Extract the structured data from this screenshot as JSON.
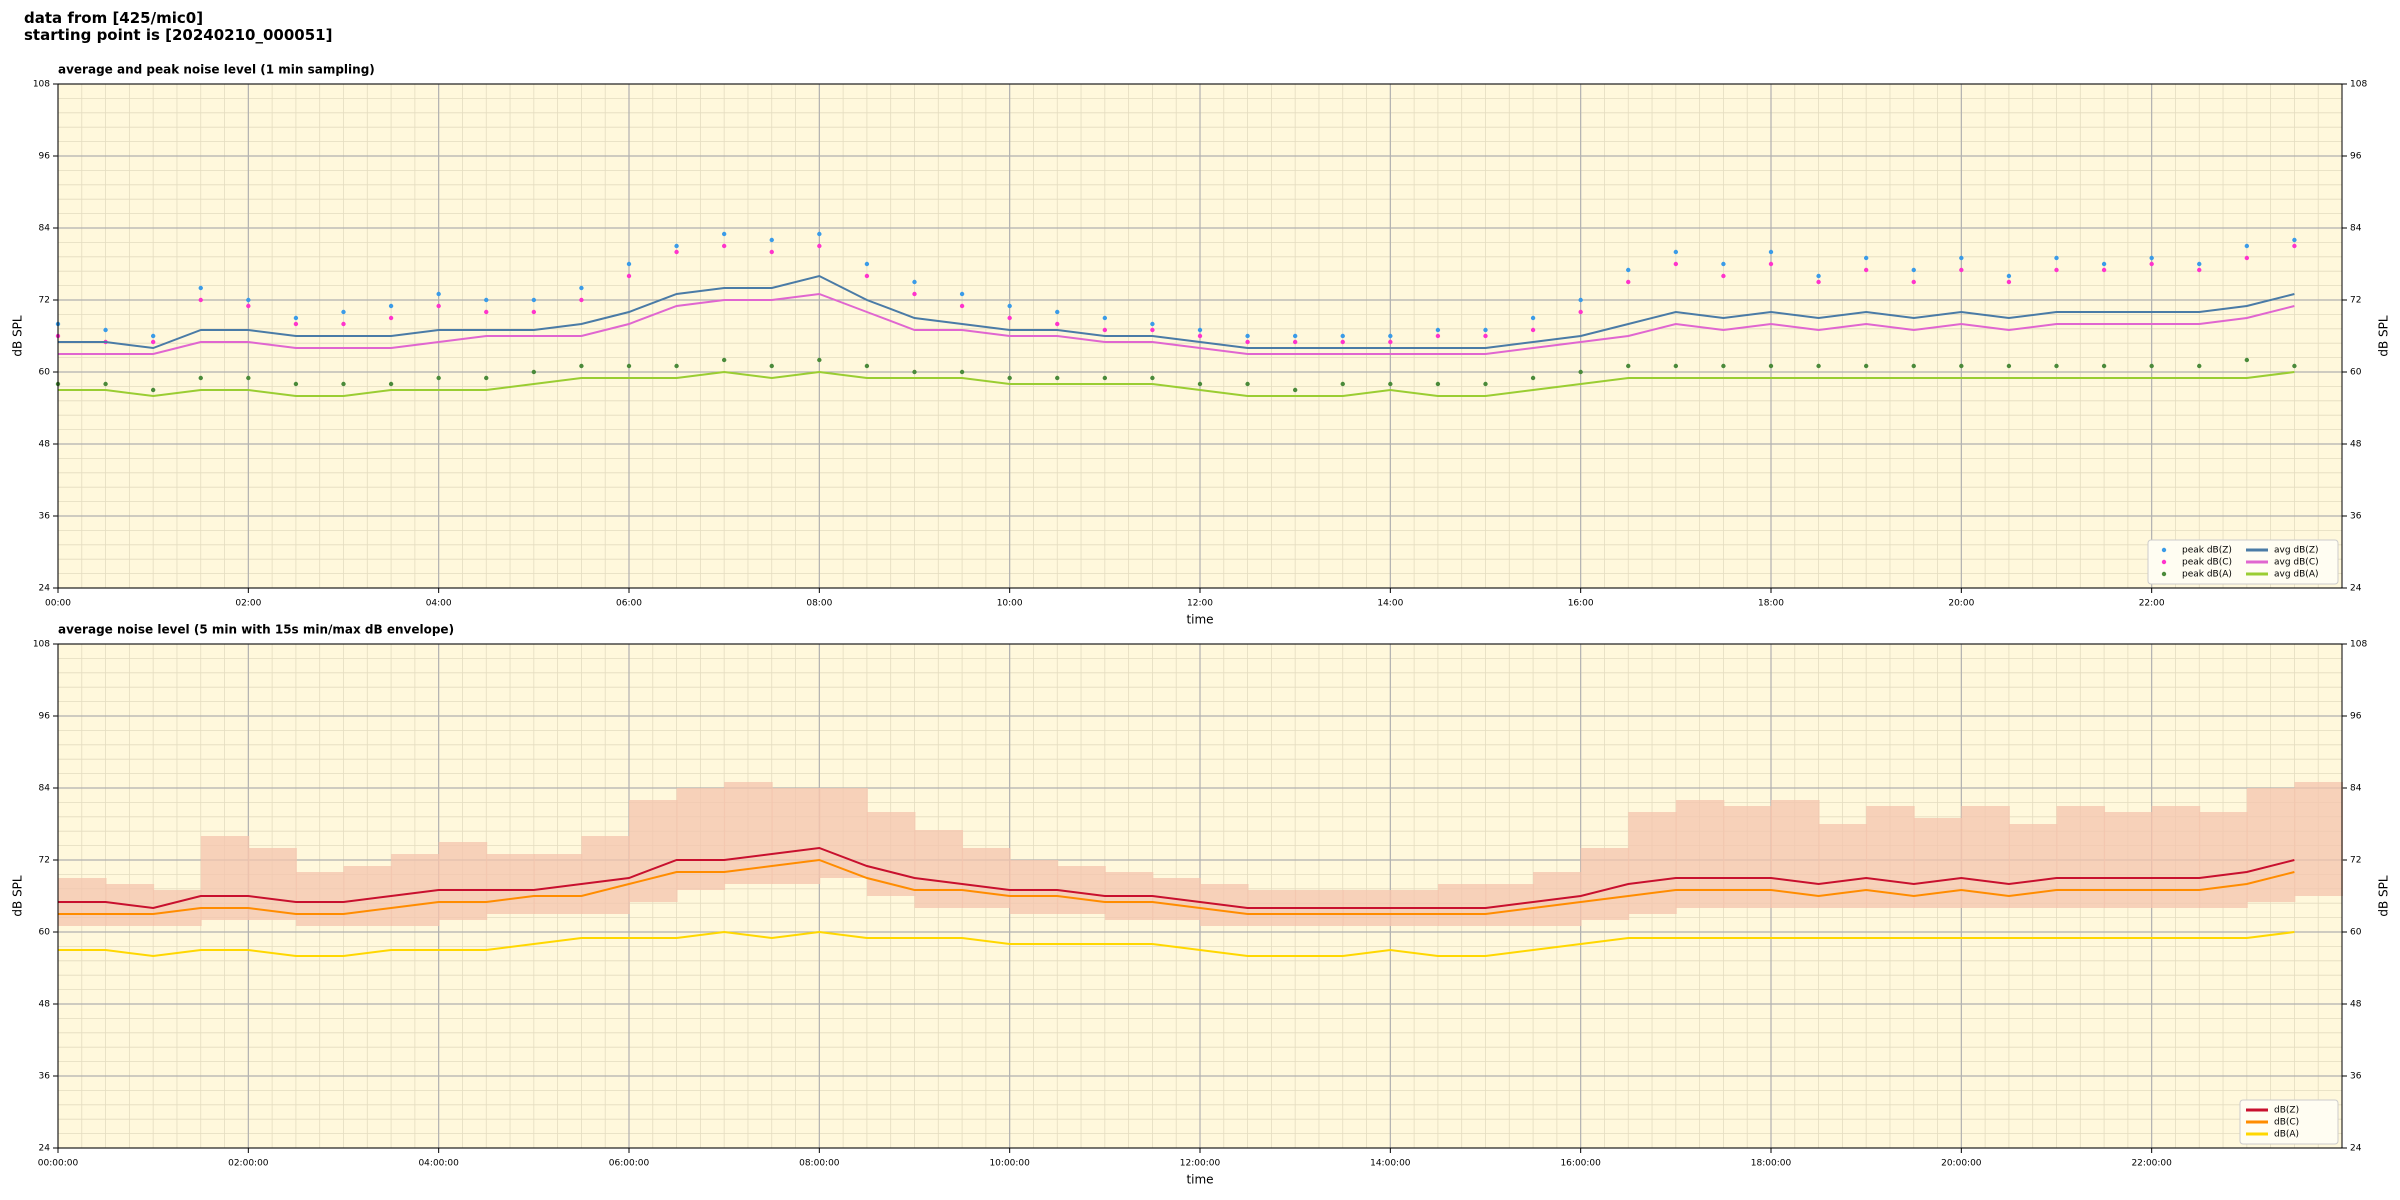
{
  "header": {
    "line1": "data from [425/mic0]",
    "line2": "starting point is [20240210_000051]"
  },
  "chart_data": [
    {
      "type": "line",
      "title": "average and peak noise level (1 min sampling)",
      "xlabel": "time",
      "ylabel": "dB SPL",
      "background": "#fff8dc",
      "grid": true,
      "legend": "lower right",
      "legend_ncol": 2,
      "xlim": [
        0,
        24
      ],
      "ylim": [
        24,
        108
      ],
      "xticks": [
        {
          "value": 0,
          "label": "00:00"
        },
        {
          "value": 2,
          "label": "02:00"
        },
        {
          "value": 4,
          "label": "04:00"
        },
        {
          "value": 6,
          "label": "06:00"
        },
        {
          "value": 8,
          "label": "08:00"
        },
        {
          "value": 10,
          "label": "10:00"
        },
        {
          "value": 12,
          "label": "12:00"
        },
        {
          "value": 14,
          "label": "14:00"
        },
        {
          "value": 16,
          "label": "16:00"
        },
        {
          "value": 18,
          "label": "18:00"
        },
        {
          "value": 20,
          "label": "20:00"
        },
        {
          "value": 22,
          "label": "22:00"
        }
      ],
      "yticks": [
        24,
        36,
        48,
        60,
        72,
        84,
        96,
        108
      ],
      "x": [
        0,
        0.5,
        1,
        1.5,
        2,
        2.5,
        3,
        3.5,
        4,
        4.5,
        5,
        5.5,
        6,
        6.5,
        7,
        7.5,
        8,
        8.5,
        9,
        9.5,
        10,
        10.5,
        11,
        11.5,
        12,
        12.5,
        13,
        13.5,
        14,
        14.5,
        15,
        15.5,
        16,
        16.5,
        17,
        17.5,
        18,
        18.5,
        19,
        19.5,
        20,
        20.5,
        21,
        21.5,
        22,
        22.5,
        23,
        23.5
      ],
      "series": [
        {
          "name": "peak dB(Z)",
          "type": "scatter",
          "color": "#3a9be8",
          "values": [
            68,
            67,
            66,
            74,
            72,
            69,
            70,
            71,
            73,
            72,
            72,
            74,
            78,
            81,
            83,
            82,
            83,
            78,
            75,
            73,
            71,
            70,
            69,
            68,
            67,
            66,
            66,
            66,
            66,
            67,
            67,
            69,
            72,
            77,
            80,
            78,
            80,
            76,
            79,
            77,
            79,
            76,
            79,
            78,
            79,
            78,
            81,
            82
          ]
        },
        {
          "name": "peak dB(C)",
          "type": "scatter",
          "color": "#ff33cc",
          "values": [
            66,
            65,
            65,
            72,
            71,
            68,
            68,
            69,
            71,
            70,
            70,
            72,
            76,
            80,
            81,
            80,
            81,
            76,
            73,
            71,
            69,
            68,
            67,
            67,
            66,
            65,
            65,
            65,
            65,
            66,
            66,
            67,
            70,
            75,
            78,
            76,
            78,
            75,
            77,
            75,
            77,
            75,
            77,
            77,
            78,
            77,
            79,
            81
          ]
        },
        {
          "name": "peak dB(A)",
          "type": "scatter",
          "color": "#4a8a3a",
          "values": [
            58,
            58,
            57,
            59,
            59,
            58,
            58,
            58,
            59,
            59,
            60,
            61,
            61,
            61,
            62,
            61,
            62,
            61,
            60,
            60,
            59,
            59,
            59,
            59,
            58,
            58,
            57,
            58,
            58,
            58,
            58,
            59,
            60,
            61,
            61,
            61,
            61,
            61,
            61,
            61,
            61,
            61,
            61,
            61,
            61,
            61,
            62,
            61
          ]
        },
        {
          "name": "avg dB(Z)",
          "type": "line",
          "color": "#4a7ba6",
          "values": [
            65,
            65,
            64,
            67,
            67,
            66,
            66,
            66,
            67,
            67,
            67,
            68,
            70,
            73,
            74,
            74,
            76,
            72,
            69,
            68,
            67,
            67,
            66,
            66,
            65,
            64,
            64,
            64,
            64,
            64,
            64,
            65,
            66,
            68,
            70,
            69,
            70,
            69,
            70,
            69,
            70,
            69,
            70,
            70,
            70,
            70,
            71,
            73
          ]
        },
        {
          "name": "avg dB(C)",
          "type": "line",
          "color": "#e066d0",
          "values": [
            63,
            63,
            63,
            65,
            65,
            64,
            64,
            64,
            65,
            66,
            66,
            66,
            68,
            71,
            72,
            72,
            73,
            70,
            67,
            67,
            66,
            66,
            65,
            65,
            64,
            63,
            63,
            63,
            63,
            63,
            63,
            64,
            65,
            66,
            68,
            67,
            68,
            67,
            68,
            67,
            68,
            67,
            68,
            68,
            68,
            68,
            69,
            71
          ]
        },
        {
          "name": "avg dB(A)",
          "type": "line",
          "color": "#9acd32",
          "values": [
            57,
            57,
            56,
            57,
            57,
            56,
            56,
            57,
            57,
            57,
            58,
            59,
            59,
            59,
            60,
            59,
            60,
            59,
            59,
            59,
            58,
            58,
            58,
            58,
            57,
            56,
            56,
            56,
            57,
            56,
            56,
            57,
            58,
            59,
            59,
            59,
            59,
            59,
            59,
            59,
            59,
            59,
            59,
            59,
            59,
            59,
            59,
            60
          ]
        }
      ]
    },
    {
      "type": "line",
      "title": "average noise level (5 min with 15s min/max dB envelope)",
      "xlabel": "time",
      "ylabel": "dB SPL",
      "background": "#fff8dc",
      "grid": true,
      "legend": "lower right",
      "legend_ncol": 1,
      "xlim": [
        0,
        24
      ],
      "ylim": [
        24,
        108
      ],
      "xticks": [
        {
          "value": 0,
          "label": "00:00:00"
        },
        {
          "value": 2,
          "label": "02:00:00"
        },
        {
          "value": 4,
          "label": "04:00:00"
        },
        {
          "value": 6,
          "label": "06:00:00"
        },
        {
          "value": 8,
          "label": "08:00:00"
        },
        {
          "value": 10,
          "label": "10:00:00"
        },
        {
          "value": 12,
          "label": "12:00:00"
        },
        {
          "value": 14,
          "label": "14:00:00"
        },
        {
          "value": 16,
          "label": "16:00:00"
        },
        {
          "value": 18,
          "label": "18:00:00"
        },
        {
          "value": 20,
          "label": "20:00:00"
        },
        {
          "value": 22,
          "label": "22:00:00"
        }
      ],
      "yticks": [
        24,
        36,
        48,
        60,
        72,
        84,
        96,
        108
      ],
      "x": [
        0,
        0.5,
        1,
        1.5,
        2,
        2.5,
        3,
        3.5,
        4,
        4.5,
        5,
        5.5,
        6,
        6.5,
        7,
        7.5,
        8,
        8.5,
        9,
        9.5,
        10,
        10.5,
        11,
        11.5,
        12,
        12.5,
        13,
        13.5,
        14,
        14.5,
        15,
        15.5,
        16,
        16.5,
        17,
        17.5,
        18,
        18.5,
        19,
        19.5,
        20,
        20.5,
        21,
        21.5,
        22,
        22.5,
        23,
        23.5
      ],
      "envelope": {
        "color": "#f4c4ae",
        "low": [
          61,
          61,
          61,
          62,
          62,
          61,
          61,
          61,
          62,
          63,
          63,
          63,
          65,
          67,
          68,
          68,
          69,
          66,
          64,
          64,
          63,
          63,
          62,
          62,
          61,
          61,
          61,
          61,
          61,
          61,
          61,
          61,
          62,
          63,
          64,
          64,
          64,
          64,
          64,
          64,
          64,
          64,
          64,
          64,
          64,
          64,
          65,
          66
        ],
        "high": [
          69,
          68,
          67,
          76,
          74,
          70,
          71,
          73,
          75,
          73,
          73,
          76,
          82,
          84,
          85,
          84,
          84,
          80,
          77,
          74,
          72,
          71,
          70,
          69,
          68,
          67,
          67,
          67,
          67,
          68,
          68,
          70,
          74,
          80,
          82,
          81,
          82,
          78,
          81,
          79,
          81,
          78,
          81,
          80,
          81,
          80,
          84,
          85
        ]
      },
      "series": [
        {
          "name": "dB(Z)",
          "type": "line",
          "color": "#c8102e",
          "values": [
            65,
            65,
            64,
            66,
            66,
            65,
            65,
            66,
            67,
            67,
            67,
            68,
            69,
            72,
            72,
            73,
            74,
            71,
            69,
            68,
            67,
            67,
            66,
            66,
            65,
            64,
            64,
            64,
            64,
            64,
            64,
            65,
            66,
            68,
            69,
            69,
            69,
            68,
            69,
            68,
            69,
            68,
            69,
            69,
            69,
            69,
            70,
            72
          ]
        },
        {
          "name": "dB(C)",
          "type": "line",
          "color": "#ff8c00",
          "values": [
            63,
            63,
            63,
            64,
            64,
            63,
            63,
            64,
            65,
            65,
            66,
            66,
            68,
            70,
            70,
            71,
            72,
            69,
            67,
            67,
            66,
            66,
            65,
            65,
            64,
            63,
            63,
            63,
            63,
            63,
            63,
            64,
            65,
            66,
            67,
            67,
            67,
            66,
            67,
            66,
            67,
            66,
            67,
            67,
            67,
            67,
            68,
            70
          ]
        },
        {
          "name": "dB(A)",
          "type": "line",
          "color": "#ffd700",
          "values": [
            57,
            57,
            56,
            57,
            57,
            56,
            56,
            57,
            57,
            57,
            58,
            59,
            59,
            59,
            60,
            59,
            60,
            59,
            59,
            59,
            58,
            58,
            58,
            58,
            57,
            56,
            56,
            56,
            57,
            56,
            56,
            57,
            58,
            59,
            59,
            59,
            59,
            59,
            59,
            59,
            59,
            59,
            59,
            59,
            59,
            59,
            59,
            60
          ]
        }
      ]
    }
  ]
}
